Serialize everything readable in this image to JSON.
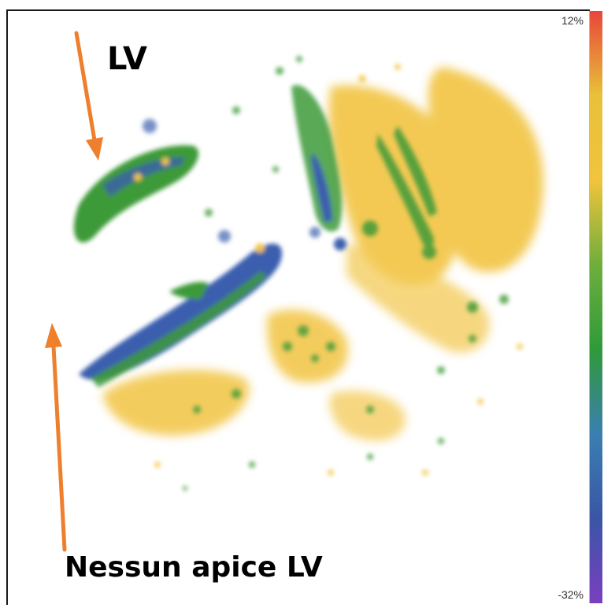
{
  "labels": {
    "lv": "LV",
    "nessun_apice": "Nessun apice LV"
  },
  "color_scale": {
    "max_label": "12%",
    "min_label": "-32%",
    "gradient": [
      "#e8463a",
      "#e8c13a",
      "#f0c43c",
      "#6fae3c",
      "#2f9a3a",
      "#3a7fb0",
      "#3a55a6",
      "#7a3fc0"
    ]
  },
  "colors": {
    "yellow": "#f2c443",
    "green": "#3d9a38",
    "blue": "#3a5fae",
    "arrow": "#ee7f2d"
  }
}
